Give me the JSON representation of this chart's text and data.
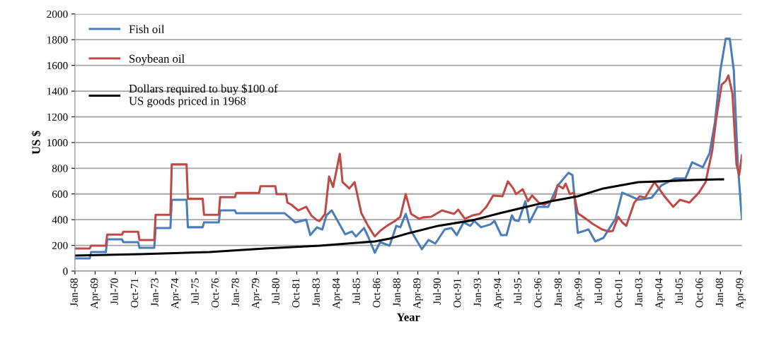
{
  "chart_data": {
    "type": "line",
    "xlabel": "Year",
    "ylabel": "US $",
    "ylim": [
      0,
      2000
    ],
    "yticks": [
      0,
      200,
      400,
      600,
      800,
      1000,
      1200,
      1400,
      1600,
      1800,
      2000
    ],
    "xlim": [
      "1968-01",
      "2009-05"
    ],
    "xticks": [
      {
        "value": "1968-01",
        "label": "Jan-68"
      },
      {
        "value": "1969-04",
        "label": "Apr-69"
      },
      {
        "value": "1970-07",
        "label": "Jul-70"
      },
      {
        "value": "1971-10",
        "label": "Oct-71"
      },
      {
        "value": "1973-01",
        "label": "Jan-73"
      },
      {
        "value": "1974-04",
        "label": "Apr-74"
      },
      {
        "value": "1975-07",
        "label": "Jul-75"
      },
      {
        "value": "1976-10",
        "label": "Oct-76"
      },
      {
        "value": "1978-01",
        "label": "Jan-78"
      },
      {
        "value": "1979-04",
        "label": "Apr-79"
      },
      {
        "value": "1980-07",
        "label": "Jul-80"
      },
      {
        "value": "1981-10",
        "label": "Oct-81"
      },
      {
        "value": "1983-01",
        "label": "Jan-83"
      },
      {
        "value": "1984-04",
        "label": "Apr-84"
      },
      {
        "value": "1985-07",
        "label": "Jul-85"
      },
      {
        "value": "1986-10",
        "label": "Oct-86"
      },
      {
        "value": "1988-01",
        "label": "Jan-88"
      },
      {
        "value": "1989-04",
        "label": "Apr-89"
      },
      {
        "value": "1990-07",
        "label": "Jul-90"
      },
      {
        "value": "1991-10",
        "label": "Oct-91"
      },
      {
        "value": "1993-01",
        "label": "Jan-93"
      },
      {
        "value": "1994-04",
        "label": "Apr-94"
      },
      {
        "value": "1995-07",
        "label": "Jul-95"
      },
      {
        "value": "1996-10",
        "label": "Oct-96"
      },
      {
        "value": "1998-01",
        "label": "Jan-98"
      },
      {
        "value": "1999-04",
        "label": "Apr-99"
      },
      {
        "value": "2000-07",
        "label": "Jul-00"
      },
      {
        "value": "2001-10",
        "label": "Oct-01"
      },
      {
        "value": "2003-01",
        "label": "Jan-03"
      },
      {
        "value": "2004-04",
        "label": "Apr-04"
      },
      {
        "value": "2005-07",
        "label": "Jul-05"
      },
      {
        "value": "2006-10",
        "label": "Oct-06"
      },
      {
        "value": "2008-01",
        "label": "Jan-08"
      },
      {
        "value": "2009-04",
        "label": "Apr-09"
      }
    ],
    "grid": "y",
    "legend": "top left",
    "marker": "none",
    "line_style": "solid",
    "series": [
      {
        "name": "Fish oil",
        "color": "#4a7ebb",
        "x": [
          "1968-01",
          "1968-12",
          "1969-01",
          "1969-12",
          "1970-01",
          "1970-12",
          "1971-01",
          "1971-12",
          "1972-01",
          "1972-12",
          "1973-01",
          "1973-12",
          "1974-01",
          "1974-12",
          "1975-01",
          "1975-12",
          "1976-01",
          "1976-12",
          "1977-01",
          "1977-12",
          "1978-01",
          "1981-01",
          "1981-09",
          "1982-05",
          "1982-08",
          "1983-01",
          "1983-05",
          "1983-08",
          "1983-12",
          "1984-05",
          "1984-10",
          "1985-03",
          "1985-06",
          "1985-12",
          "1986-03",
          "1986-08",
          "1986-12",
          "1987-07",
          "1987-12",
          "1988-03",
          "1988-07",
          "1988-11",
          "1989-07",
          "1989-12",
          "1990-05",
          "1990-12",
          "1991-05",
          "1991-09",
          "1992-02",
          "1992-07",
          "1992-10",
          "1993-03",
          "1993-10",
          "1994-01",
          "1994-06",
          "1994-10",
          "1995-02",
          "1995-04",
          "1995-07",
          "1995-12",
          "1996-03",
          "1996-09",
          "1997-05",
          "1997-12",
          "1998-08",
          "1998-11",
          "1999-03",
          "1999-11",
          "2000-04",
          "2000-10",
          "2001-07",
          "2001-12",
          "2002-05",
          "2002-12",
          "2003-10",
          "2004-05",
          "2005-03",
          "2005-11",
          "2006-04",
          "2006-12",
          "2007-05",
          "2007-09",
          "2008-01",
          "2008-05",
          "2008-08",
          "2008-11",
          "2009-02",
          "2009-05"
        ],
        "values": [
          99,
          99,
          148,
          148,
          247,
          247,
          225,
          225,
          181,
          181,
          335,
          335,
          555,
          555,
          341,
          341,
          379,
          379,
          472,
          472,
          450,
          450,
          379,
          400,
          280,
          340,
          324,
          434,
          472,
          379,
          286,
          308,
          269,
          335,
          269,
          143,
          225,
          198,
          352,
          341,
          445,
          313,
          170,
          242,
          214,
          324,
          335,
          280,
          379,
          352,
          390,
          341,
          363,
          390,
          280,
          280,
          434,
          396,
          390,
          544,
          379,
          500,
          500,
          665,
          764,
          747,
          297,
          324,
          231,
          258,
          407,
          610,
          588,
          555,
          571,
          665,
          720,
          720,
          846,
          808,
          918,
          1159,
          1560,
          1808,
          1808,
          1560,
          830,
          407
        ]
      },
      {
        "name": "Soybean oil",
        "color": "#be4b48",
        "x": [
          "1968-01",
          "1968-12",
          "1969-01",
          "1969-12",
          "1970-01",
          "1970-12",
          "1971-01",
          "1971-12",
          "1972-01",
          "1972-12",
          "1973-01",
          "1973-12",
          "1974-01",
          "1974-12",
          "1975-01",
          "1975-12",
          "1976-01",
          "1976-12",
          "1977-01",
          "1977-12",
          "1978-01",
          "1979-06",
          "1979-07",
          "1980-06",
          "1980-07",
          "1981-02",
          "1981-03",
          "1981-06",
          "1981-11",
          "1982-05",
          "1982-09",
          "1983-01",
          "1983-03",
          "1983-07",
          "1983-10",
          "1984-01",
          "1984-06",
          "1984-08",
          "1985-01",
          "1985-05",
          "1985-10",
          "1986-03",
          "1986-08",
          "1986-12",
          "1987-05",
          "1987-11",
          "1988-03",
          "1988-07",
          "1988-11",
          "1989-05",
          "1989-08",
          "1990-02",
          "1990-10",
          "1991-07",
          "1991-10",
          "1992-03",
          "1992-09",
          "1993-02",
          "1993-07",
          "1993-12",
          "1994-07",
          "1994-11",
          "1995-03",
          "1995-05",
          "1995-10",
          "1996-02",
          "1996-05",
          "1996-10",
          "1997-02",
          "1997-07",
          "1997-10",
          "1997-12",
          "1998-04",
          "1998-06",
          "1998-09",
          "1998-12",
          "1999-03",
          "1999-09",
          "2000-02",
          "2000-09",
          "2001-02",
          "2001-05",
          "2001-09",
          "2001-12",
          "2002-03",
          "2002-09",
          "2003-01",
          "2003-05",
          "2003-12",
          "2004-07",
          "2005-02",
          "2005-07",
          "2006-02",
          "2006-09",
          "2007-02",
          "2007-07",
          "2007-10",
          "2008-02",
          "2008-05",
          "2008-07",
          "2008-10",
          "2009-01",
          "2009-03",
          "2009-05"
        ],
        "values": [
          176,
          176,
          198,
          198,
          284,
          284,
          306,
          306,
          242,
          242,
          438,
          438,
          830,
          830,
          562,
          562,
          438,
          438,
          575,
          575,
          608,
          608,
          660,
          660,
          599,
          599,
          533,
          516,
          472,
          500,
          430,
          396,
          390,
          445,
          736,
          654,
          912,
          692,
          643,
          692,
          450,
          352,
          269,
          313,
          352,
          390,
          423,
          599,
          445,
          407,
          418,
          423,
          472,
          445,
          478,
          407,
          434,
          445,
          500,
          588,
          582,
          698,
          643,
          599,
          637,
          544,
          588,
          533,
          516,
          544,
          571,
          670,
          643,
          681,
          599,
          610,
          450,
          407,
          368,
          324,
          308,
          313,
          423,
          379,
          352,
          533,
          582,
          571,
          692,
          588,
          500,
          555,
          533,
          610,
          692,
          940,
          1192,
          1451,
          1478,
          1522,
          1379,
          830,
          747,
          901
        ]
      },
      {
        "name": "Dollars required to buy $100 of\nUS goods priced in 1968",
        "color": "#000000",
        "x": [
          "1968-01",
          "1972-01",
          "1976-05",
          "1979-10",
          "1983-03",
          "1986-08",
          "1987-07",
          "1988-10",
          "1990-07",
          "1992-09",
          "1994-05",
          "1995-04",
          "1997-05",
          "1999-03",
          "2000-10",
          "2002-12",
          "2004-05",
          "2006-05",
          "2008-03"
        ],
        "values": [
          121,
          132,
          148,
          176,
          198,
          231,
          253,
          297,
          352,
          396,
          450,
          478,
          540,
          582,
          643,
          692,
          698,
          709,
          714
        ]
      }
    ]
  }
}
